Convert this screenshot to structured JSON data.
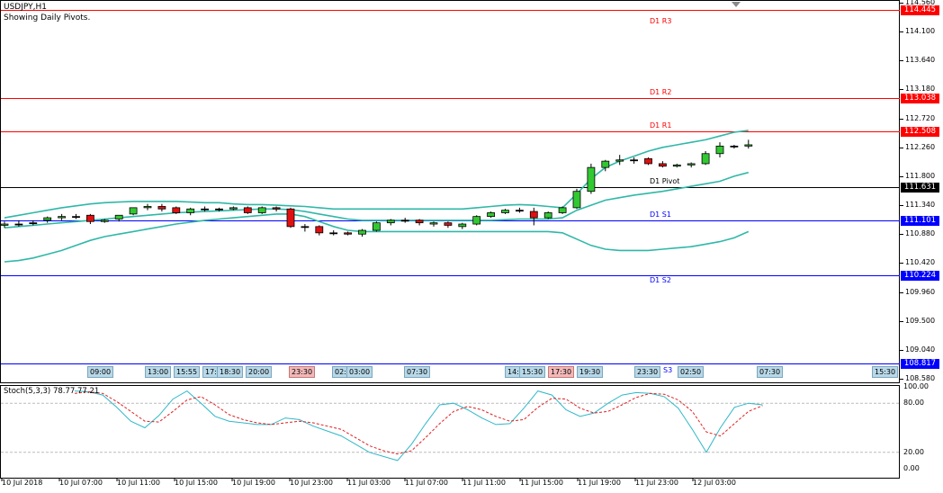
{
  "chart_header": {
    "symbol": "USDJPY,H1",
    "note": "Showing Daily Pivots."
  },
  "pivots": [
    {
      "label": "D1 R3",
      "price": "114.445",
      "color": "#ff0000"
    },
    {
      "label": "D1 R2",
      "price": "113.038",
      "color": "#ff0000"
    },
    {
      "label": "D1 R1",
      "price": "112.508",
      "color": "#ff0000"
    },
    {
      "label": "D1 Pivot",
      "price": "111.631",
      "color": "#000000"
    },
    {
      "label": "D1 S1",
      "price": "111.101",
      "color": "#0000ff"
    },
    {
      "label": "D1 S2",
      "price": "110.224",
      "color": "#0000ff"
    },
    {
      "label": "S3",
      "price": "108.817",
      "color": "#0000ff"
    }
  ],
  "price_axis": [
    "114.560",
    "114.100",
    "113.640",
    "113.180",
    "112.720",
    "112.260",
    "111.800",
    "111.340",
    "110.880",
    "110.420",
    "109.960",
    "109.500",
    "109.040",
    "108.580"
  ],
  "time_labels": [
    {
      "text": "09:00",
      "red": false
    },
    {
      "text": "13:00",
      "red": false
    },
    {
      "text": "15:55",
      "red": false
    },
    {
      "text": "17:",
      "red": false
    },
    {
      "text": "18:30",
      "red": false
    },
    {
      "text": "20:00",
      "red": false
    },
    {
      "text": "23:30",
      "red": true
    },
    {
      "text": "02:",
      "red": false
    },
    {
      "text": "03:00",
      "red": false
    },
    {
      "text": "07:30",
      "red": false
    },
    {
      "text": "14:",
      "red": false
    },
    {
      "text": "15:30",
      "red": false
    },
    {
      "text": "17:30",
      "red": true
    },
    {
      "text": "19:30",
      "red": false
    },
    {
      "text": "23:30",
      "red": false
    },
    {
      "text": "02:50",
      "red": false
    },
    {
      "text": "07:30",
      "red": false
    },
    {
      "text": "15:30",
      "red": false
    }
  ],
  "stoch": {
    "title": "Stoch(5,3,3) 78.77 77.21",
    "axis": [
      "100.00",
      "80.00",
      "20.00",
      "0.00"
    ]
  },
  "date_axis": [
    "10 Jul 2018",
    "10 Jul 07:00",
    "10 Jul 11:00",
    "10 Jul 15:00",
    "10 Jul 19:00",
    "10 Jul 23:00",
    "11 Jul 03:00",
    "11 Jul 07:00",
    "11 Jul 11:00",
    "11 Jul 15:00",
    "11 Jul 19:00",
    "11 Jul 23:00",
    "12 Jul 03:00"
  ],
  "chart_data": {
    "type": "candlestick",
    "title": "USDJPY,H1",
    "candles": [
      {
        "o": 111.02,
        "h": 111.08,
        "l": 110.98,
        "c": 111.04
      },
      {
        "o": 111.04,
        "h": 111.1,
        "l": 111.0,
        "c": 111.04
      },
      {
        "o": 111.06,
        "h": 111.1,
        "l": 111.02,
        "c": 111.06
      },
      {
        "o": 111.1,
        "h": 111.16,
        "l": 111.06,
        "c": 111.14
      },
      {
        "o": 111.14,
        "h": 111.2,
        "l": 111.1,
        "c": 111.16
      },
      {
        "o": 111.16,
        "h": 111.2,
        "l": 111.12,
        "c": 111.16
      },
      {
        "o": 111.18,
        "h": 111.2,
        "l": 111.04,
        "c": 111.08
      },
      {
        "o": 111.08,
        "h": 111.12,
        "l": 111.06,
        "c": 111.1
      },
      {
        "o": 111.12,
        "h": 111.18,
        "l": 111.08,
        "c": 111.18
      },
      {
        "o": 111.2,
        "h": 111.3,
        "l": 111.18,
        "c": 111.3
      },
      {
        "o": 111.3,
        "h": 111.36,
        "l": 111.26,
        "c": 111.32
      },
      {
        "o": 111.32,
        "h": 111.36,
        "l": 111.24,
        "c": 111.28
      },
      {
        "o": 111.3,
        "h": 111.32,
        "l": 111.2,
        "c": 111.22
      },
      {
        "o": 111.22,
        "h": 111.3,
        "l": 111.18,
        "c": 111.28
      },
      {
        "o": 111.28,
        "h": 111.32,
        "l": 111.24,
        "c": 111.28
      },
      {
        "o": 111.28,
        "h": 111.3,
        "l": 111.24,
        "c": 111.28
      },
      {
        "o": 111.28,
        "h": 111.32,
        "l": 111.26,
        "c": 111.3
      },
      {
        "o": 111.3,
        "h": 111.32,
        "l": 111.2,
        "c": 111.22
      },
      {
        "o": 111.22,
        "h": 111.32,
        "l": 111.2,
        "c": 111.3
      },
      {
        "o": 111.3,
        "h": 111.32,
        "l": 111.24,
        "c": 111.28
      },
      {
        "o": 111.28,
        "h": 111.3,
        "l": 110.98,
        "c": 111.0
      },
      {
        "o": 111.0,
        "h": 111.04,
        "l": 110.92,
        "c": 111.0
      },
      {
        "o": 111.0,
        "h": 111.02,
        "l": 110.86,
        "c": 110.9
      },
      {
        "o": 110.9,
        "h": 110.94,
        "l": 110.86,
        "c": 110.9
      },
      {
        "o": 110.9,
        "h": 110.92,
        "l": 110.86,
        "c": 110.88
      },
      {
        "o": 110.88,
        "h": 110.96,
        "l": 110.84,
        "c": 110.94
      },
      {
        "o": 110.94,
        "h": 111.08,
        "l": 110.92,
        "c": 111.06
      },
      {
        "o": 111.06,
        "h": 111.12,
        "l": 111.02,
        "c": 111.1
      },
      {
        "o": 111.1,
        "h": 111.14,
        "l": 111.06,
        "c": 111.1
      },
      {
        "o": 111.1,
        "h": 111.12,
        "l": 111.02,
        "c": 111.06
      },
      {
        "o": 111.04,
        "h": 111.08,
        "l": 111.0,
        "c": 111.06
      },
      {
        "o": 111.06,
        "h": 111.08,
        "l": 110.98,
        "c": 111.02
      },
      {
        "o": 111.0,
        "h": 111.06,
        "l": 110.96,
        "c": 111.04
      },
      {
        "o": 111.04,
        "h": 111.18,
        "l": 111.02,
        "c": 111.16
      },
      {
        "o": 111.16,
        "h": 111.24,
        "l": 111.14,
        "c": 111.22
      },
      {
        "o": 111.22,
        "h": 111.28,
        "l": 111.2,
        "c": 111.26
      },
      {
        "o": 111.26,
        "h": 111.3,
        "l": 111.22,
        "c": 111.26
      },
      {
        "o": 111.24,
        "h": 111.3,
        "l": 111.02,
        "c": 111.14
      },
      {
        "o": 111.14,
        "h": 111.24,
        "l": 111.12,
        "c": 111.22
      },
      {
        "o": 111.22,
        "h": 111.32,
        "l": 111.2,
        "c": 111.3
      },
      {
        "o": 111.3,
        "h": 111.6,
        "l": 111.28,
        "c": 111.56
      },
      {
        "o": 111.56,
        "h": 112.0,
        "l": 111.52,
        "c": 111.94
      },
      {
        "o": 111.94,
        "h": 112.06,
        "l": 111.88,
        "c": 112.04
      },
      {
        "o": 112.04,
        "h": 112.14,
        "l": 111.98,
        "c": 112.06
      },
      {
        "o": 112.06,
        "h": 112.1,
        "l": 112.0,
        "c": 112.06
      },
      {
        "o": 112.08,
        "h": 112.1,
        "l": 111.98,
        "c": 112.0
      },
      {
        "o": 112.0,
        "h": 112.04,
        "l": 111.94,
        "c": 111.96
      },
      {
        "o": 111.96,
        "h": 112.0,
        "l": 111.94,
        "c": 111.98
      },
      {
        "o": 111.98,
        "h": 112.02,
        "l": 111.94,
        "c": 112.0
      },
      {
        "o": 112.0,
        "h": 112.2,
        "l": 111.98,
        "c": 112.16
      },
      {
        "o": 112.16,
        "h": 112.34,
        "l": 112.1,
        "c": 112.28
      },
      {
        "o": 112.28,
        "h": 112.3,
        "l": 112.24,
        "c": 112.28
      },
      {
        "o": 112.28,
        "h": 112.38,
        "l": 112.24,
        "c": 112.3
      }
    ],
    "bollinger_upper": [
      111.14,
      111.18,
      111.22,
      111.26,
      111.3,
      111.33,
      111.36,
      111.38,
      111.39,
      111.4,
      111.4,
      111.4,
      111.4,
      111.39,
      111.38,
      111.38,
      111.36,
      111.35,
      111.35,
      111.34,
      111.33,
      111.32,
      111.3,
      111.28,
      111.28,
      111.28,
      111.28,
      111.28,
      111.28,
      111.28,
      111.28,
      111.28,
      111.28,
      111.3,
      111.32,
      111.34,
      111.35,
      111.34,
      111.32,
      111.3,
      111.52,
      111.76,
      111.94,
      112.04,
      112.12,
      112.2,
      112.26,
      112.3,
      112.34,
      112.38,
      112.44,
      112.5,
      112.53
    ],
    "bollinger_middle": [
      110.98,
      111.0,
      111.02,
      111.04,
      111.06,
      111.08,
      111.1,
      111.12,
      111.14,
      111.16,
      111.18,
      111.2,
      111.22,
      111.23,
      111.24,
      111.25,
      111.26,
      111.27,
      111.28,
      111.28,
      111.27,
      111.24,
      111.2,
      111.16,
      111.12,
      111.1,
      111.1,
      111.1,
      111.1,
      111.1,
      111.1,
      111.1,
      111.1,
      111.1,
      111.1,
      111.11,
      111.12,
      111.12,
      111.12,
      111.14,
      111.26,
      111.34,
      111.42,
      111.46,
      111.5,
      111.53,
      111.56,
      111.6,
      111.64,
      111.68,
      111.72,
      111.8,
      111.86
    ],
    "bollinger_lower": [
      110.44,
      110.46,
      110.5,
      110.56,
      110.62,
      110.7,
      110.78,
      110.84,
      110.88,
      110.92,
      110.96,
      111.0,
      111.04,
      111.07,
      111.1,
      111.12,
      111.14,
      111.16,
      111.18,
      111.2,
      111.2,
      111.16,
      111.08,
      111.0,
      110.94,
      110.92,
      110.92,
      110.92,
      110.92,
      110.92,
      110.92,
      110.92,
      110.92,
      110.92,
      110.92,
      110.92,
      110.92,
      110.92,
      110.92,
      110.9,
      110.8,
      110.7,
      110.64,
      110.62,
      110.62,
      110.62,
      110.64,
      110.66,
      110.68,
      110.72,
      110.76,
      110.82,
      110.92
    ],
    "stoch_main": [
      95,
      94,
      90,
      75,
      58,
      50,
      65,
      85,
      95,
      80,
      64,
      58,
      56,
      54,
      54,
      62,
      60,
      52,
      46,
      40,
      30,
      20,
      15,
      10,
      30,
      55,
      78,
      80,
      72,
      62,
      54,
      55,
      74,
      95,
      90,
      72,
      64,
      68,
      80,
      90,
      93,
      92,
      88,
      74,
      48,
      20,
      50,
      75,
      80,
      78
    ],
    "stoch_signal": [
      92,
      94,
      92,
      82,
      70,
      58,
      57,
      70,
      84,
      88,
      78,
      66,
      60,
      56,
      54,
      56,
      58,
      56,
      52,
      48,
      38,
      28,
      22,
      18,
      22,
      38,
      55,
      70,
      76,
      72,
      64,
      58,
      60,
      75,
      86,
      85,
      74,
      68,
      70,
      78,
      87,
      92,
      91,
      84,
      70,
      45,
      40,
      55,
      70,
      77
    ]
  }
}
